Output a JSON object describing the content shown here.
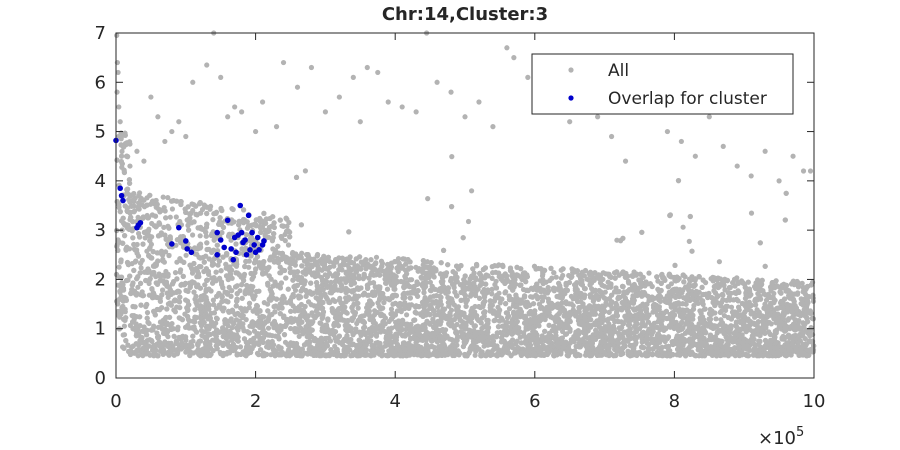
{
  "chart_data": {
    "type": "scatter",
    "title": "Chr:14,Cluster:3",
    "xlabel": "",
    "ylabel": "",
    "xlim": [
      0,
      1000000
    ],
    "ylim": [
      0,
      7
    ],
    "x_ticks": [
      0,
      200000,
      400000,
      600000,
      800000,
      1000000
    ],
    "x_tick_labels": [
      "0",
      "2",
      "4",
      "6",
      "8",
      "10"
    ],
    "x_exponent_label": "×10",
    "x_exponent_power": "5",
    "y_ticks": [
      0,
      1,
      2,
      3,
      4,
      5,
      6,
      7
    ],
    "y_tick_labels": [
      "0",
      "1",
      "2",
      "3",
      "4",
      "5",
      "6",
      "7"
    ],
    "grid": false,
    "legend_position": "top-right",
    "series": [
      {
        "name": "All",
        "color": "#b3b3b3",
        "description_of_density": "dense cloud; high near x=0 and decaying toward x=1e6",
        "points": [
          [
            1000,
            6.95
          ],
          [
            2000,
            6.4
          ],
          [
            3000,
            6.2
          ],
          [
            1500,
            5.8
          ],
          [
            4000,
            5.5
          ],
          [
            6000,
            5.2
          ],
          [
            8000,
            4.9
          ],
          [
            10000,
            4.7
          ],
          [
            15000,
            4.5
          ],
          [
            20000,
            4.3
          ],
          [
            30000,
            4.6
          ],
          [
            40000,
            4.4
          ],
          [
            50000,
            5.7
          ],
          [
            60000,
            5.3
          ],
          [
            70000,
            4.8
          ],
          [
            80000,
            5.0
          ],
          [
            90000,
            5.2
          ],
          [
            100000,
            4.9
          ],
          [
            110000,
            6.0
          ],
          [
            130000,
            6.35
          ],
          [
            140000,
            7.0
          ],
          [
            150000,
            6.1
          ],
          [
            160000,
            5.3
          ],
          [
            170000,
            5.5
          ],
          [
            180000,
            5.4
          ],
          [
            200000,
            5.0
          ],
          [
            210000,
            5.6
          ],
          [
            230000,
            5.1
          ],
          [
            240000,
            6.4
          ],
          [
            260000,
            5.9
          ],
          [
            280000,
            6.3
          ],
          [
            300000,
            5.4
          ],
          [
            320000,
            5.7
          ],
          [
            340000,
            6.1
          ],
          [
            350000,
            5.2
          ],
          [
            360000,
            6.3
          ],
          [
            375000,
            6.2
          ],
          [
            390000,
            5.6
          ],
          [
            410000,
            5.5
          ],
          [
            430000,
            5.4
          ],
          [
            445000,
            7.0
          ],
          [
            460000,
            6.0
          ],
          [
            480000,
            5.8
          ],
          [
            500000,
            5.3
          ],
          [
            520000,
            5.6
          ],
          [
            540000,
            5.1
          ],
          [
            560000,
            6.7
          ],
          [
            570000,
            6.5
          ],
          [
            590000,
            6.1
          ],
          [
            610000,
            5.5
          ],
          [
            630000,
            6.0
          ],
          [
            650000,
            5.2
          ],
          [
            670000,
            5.6
          ],
          [
            690000,
            5.3
          ],
          [
            710000,
            4.9
          ],
          [
            730000,
            4.4
          ],
          [
            750000,
            6.4
          ],
          [
            770000,
            5.8
          ],
          [
            790000,
            5.0
          ],
          [
            810000,
            4.8
          ],
          [
            830000,
            4.5
          ],
          [
            850000,
            5.3
          ],
          [
            870000,
            4.7
          ],
          [
            890000,
            4.3
          ],
          [
            910000,
            4.1
          ],
          [
            930000,
            4.6
          ],
          [
            950000,
            4.0
          ],
          [
            970000,
            4.5
          ],
          [
            985000,
            4.2
          ],
          [
            995000,
            4.2
          ]
        ]
      },
      {
        "name": "Overlap for cluster",
        "color": "#0000cc",
        "points": [
          [
            0,
            4.82
          ],
          [
            6000,
            3.85
          ],
          [
            8000,
            3.7
          ],
          [
            10000,
            3.6
          ],
          [
            30000,
            3.05
          ],
          [
            32000,
            3.1
          ],
          [
            35000,
            3.15
          ],
          [
            80000,
            2.72
          ],
          [
            90000,
            3.05
          ],
          [
            100000,
            2.78
          ],
          [
            102000,
            2.62
          ],
          [
            108000,
            2.55
          ],
          [
            145000,
            2.5
          ],
          [
            145000,
            2.95
          ],
          [
            150000,
            2.8
          ],
          [
            155000,
            2.65
          ],
          [
            160000,
            3.2
          ],
          [
            165000,
            2.62
          ],
          [
            168000,
            2.4
          ],
          [
            170000,
            2.85
          ],
          [
            172000,
            2.55
          ],
          [
            175000,
            2.9
          ],
          [
            178000,
            3.5
          ],
          [
            180000,
            2.95
          ],
          [
            182000,
            2.75
          ],
          [
            185000,
            2.8
          ],
          [
            187000,
            2.5
          ],
          [
            190000,
            3.3
          ],
          [
            192000,
            2.6
          ],
          [
            195000,
            2.95
          ],
          [
            198000,
            2.7
          ],
          [
            200000,
            2.55
          ],
          [
            203000,
            2.85
          ],
          [
            205000,
            2.6
          ],
          [
            210000,
            2.7
          ],
          [
            212000,
            2.78
          ]
        ]
      }
    ]
  }
}
